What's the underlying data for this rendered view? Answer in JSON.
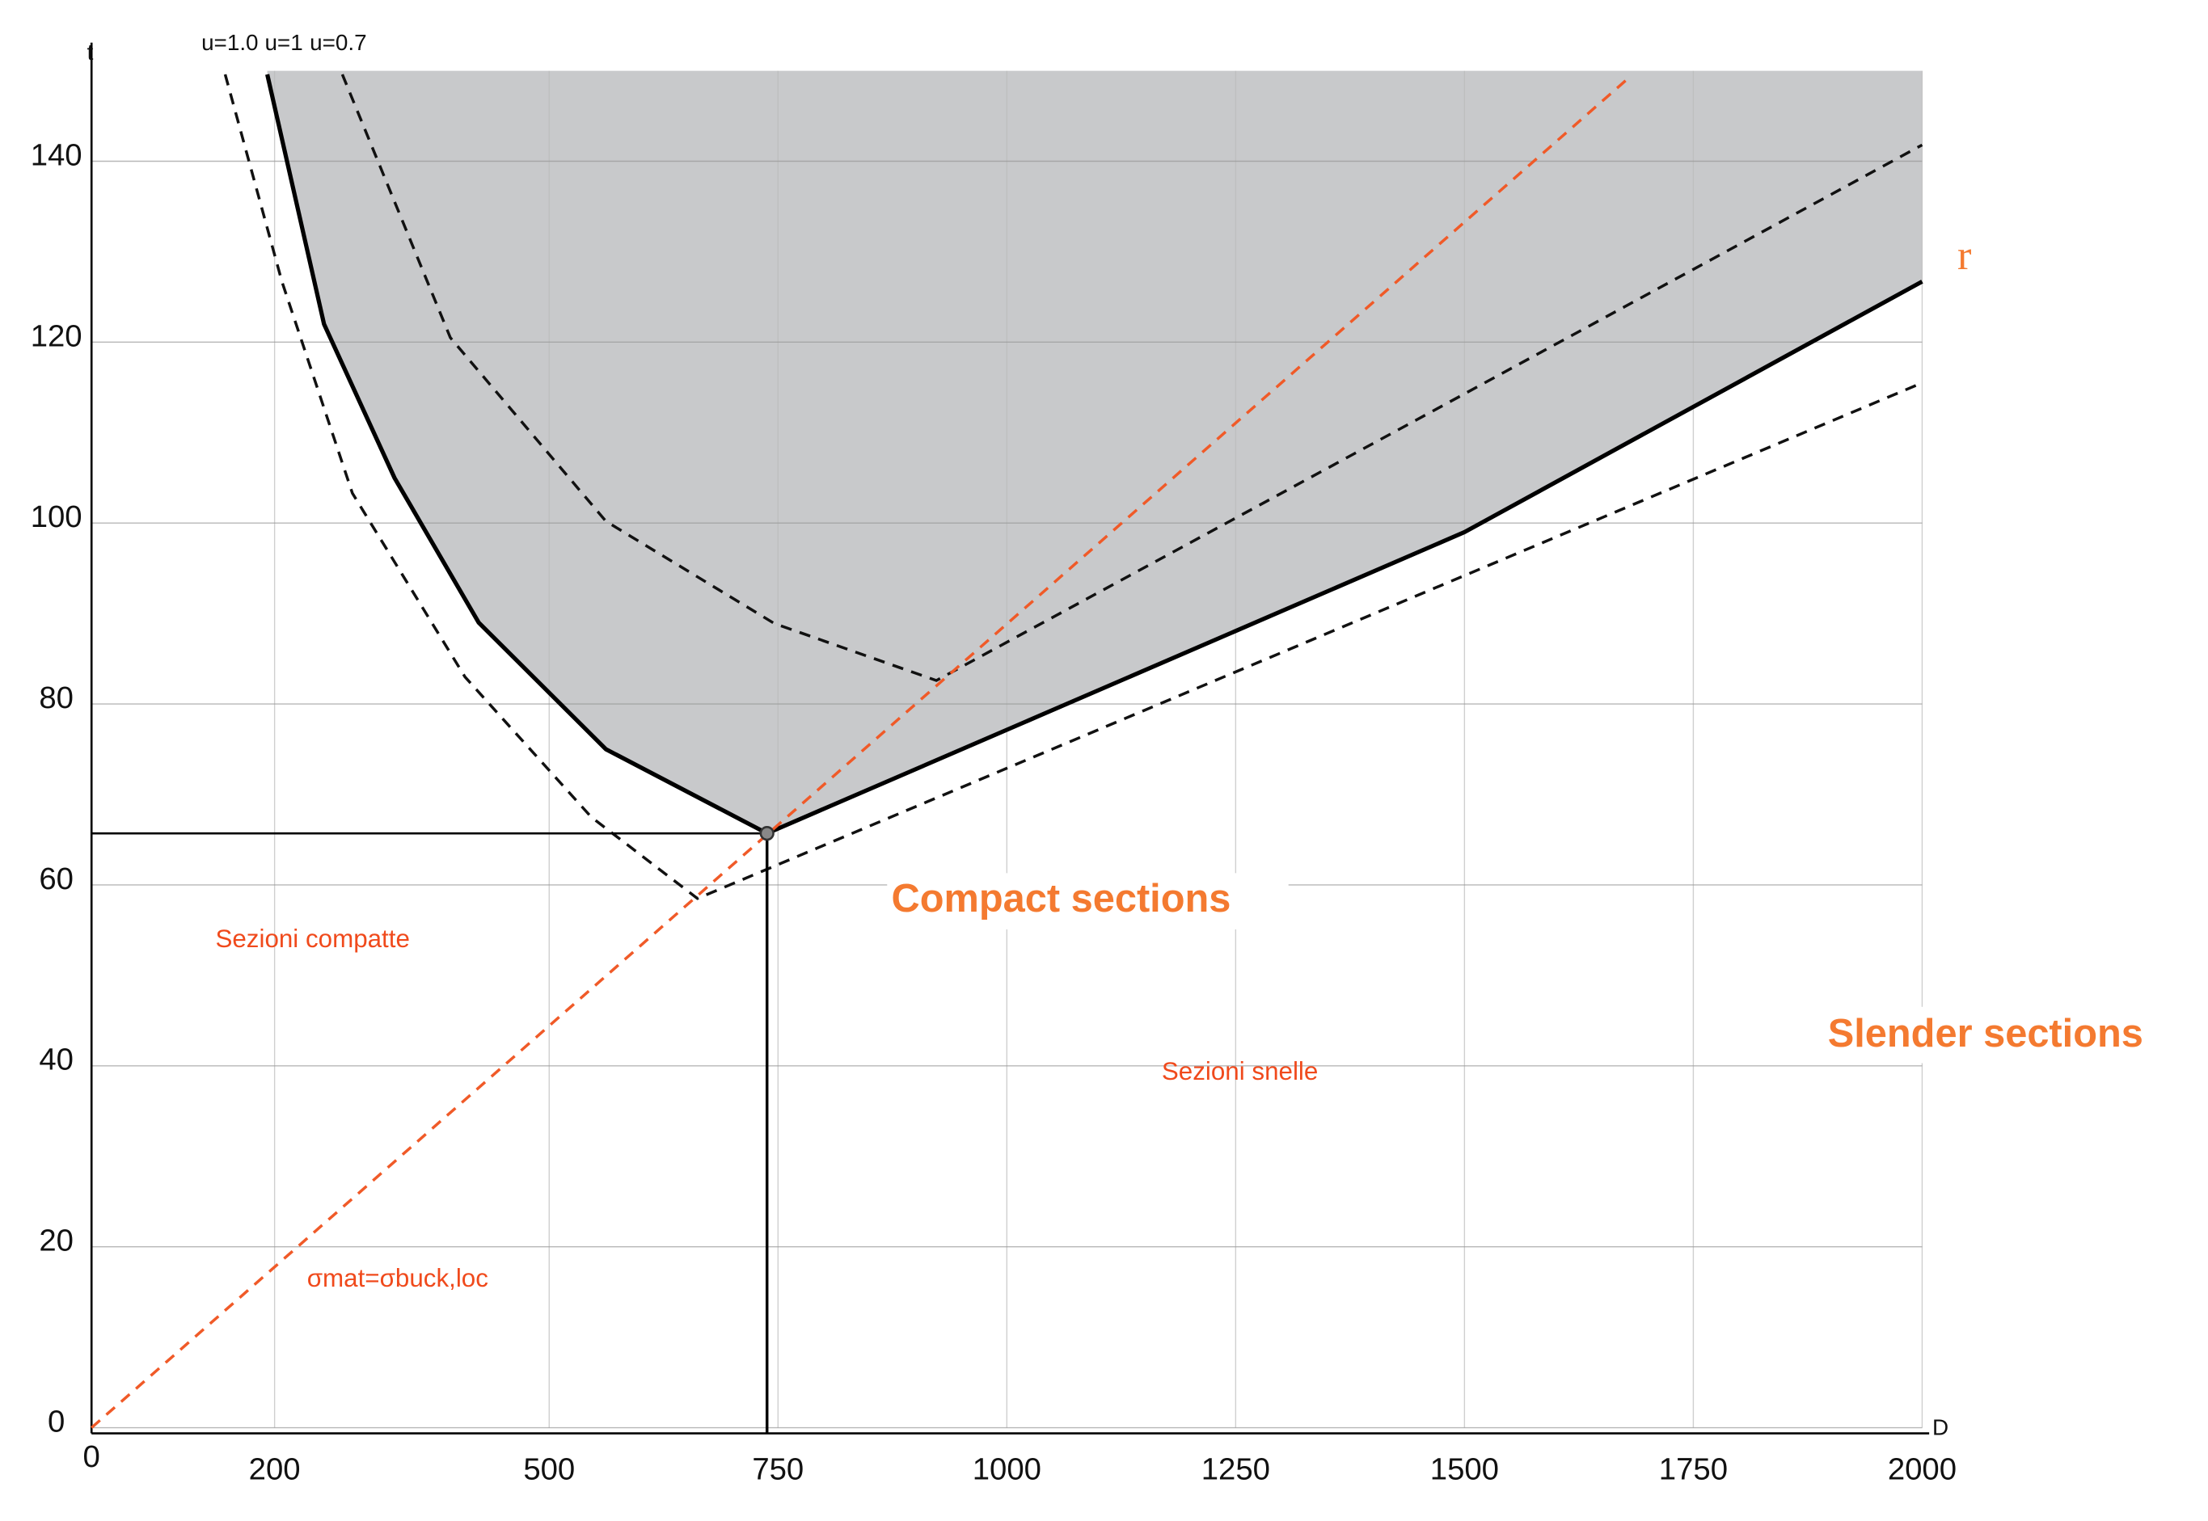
{
  "chart_data": {
    "type": "line",
    "x_label": "D",
    "y_label": "t",
    "xlim": [
      0,
      2000
    ],
    "ylim": [
      0,
      150
    ],
    "xticks": [
      0,
      200,
      500,
      750,
      1000,
      1250,
      1500,
      1750,
      2000
    ],
    "yticks": [
      0,
      20,
      40,
      60,
      80,
      100,
      120,
      140
    ],
    "grid": true,
    "series": [
      {
        "name": "u=1.0",
        "color": "#111111",
        "dash": true,
        "x": [
          146,
          208,
          285,
          408,
          546,
          662,
          1331,
          2000
        ],
        "values": [
          149.6,
          126.7,
          103.3,
          83,
          67.5,
          58.5,
          87,
          115.5
        ]
      },
      {
        "name": "u=1",
        "color": "#000000",
        "dash": false,
        "fill_color": "#c8c9cb",
        "x": [
          192,
          254,
          331,
          423,
          562,
          738,
          1500,
          2000
        ],
        "values": [
          149.6,
          122,
          105,
          89,
          75,
          65.7,
          99,
          126.7
        ]
      },
      {
        "name": "u=0.7",
        "color": "#111111",
        "dash": true,
        "x": [
          274,
          392,
          562,
          746,
          923,
          1462,
          2000
        ],
        "values": [
          149.6,
          120.5,
          100.2,
          88.9,
          82.6,
          112.2,
          141.8
        ]
      },
      {
        "name": "r",
        "color": "#f05a28",
        "dash": true,
        "x": [
          0,
          1677
        ],
        "values": [
          0,
          149
        ]
      }
    ],
    "annotations": [
      "Compact sections",
      "Slender sections",
      "Sezioni compatte",
      "Sezioni snelle",
      "σmat=σbuck,loc"
    ]
  }
}
